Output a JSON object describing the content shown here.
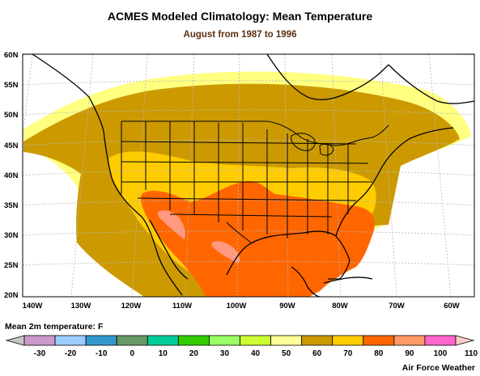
{
  "title": "ACMES Modeled Climatology: Mean Temperature",
  "subtitle": "August from 1987 to 1996",
  "colors": {
    "title": "#000000",
    "subtitle": "#5a2f0f",
    "grid": "#b8b8b8",
    "border": "#000000",
    "coast": "#000000"
  },
  "map": {
    "latitudes": [
      "60N",
      "55N",
      "50N",
      "45N",
      "40N",
      "35N",
      "30N",
      "25N",
      "20N"
    ],
    "longitudes": [
      "140W",
      "130W",
      "120W",
      "110W",
      "100W",
      "90W",
      "80W",
      "70W",
      "60W"
    ],
    "field_bands": [
      {
        "name": "50-60 F",
        "color": "#ffff80"
      },
      {
        "name": "60-70 F",
        "color": "#cc9a00"
      },
      {
        "name": "70-80 F",
        "color": "#ffcc00"
      },
      {
        "name": "80-90 F",
        "color": "#ff6600"
      },
      {
        "name": "90-100 F",
        "color": "#ff9a80"
      }
    ]
  },
  "legend": {
    "title": "Mean 2m temperature: F",
    "ticks": [
      "-30",
      "-20",
      "-10",
      "0",
      "10",
      "20",
      "30",
      "40",
      "50",
      "60",
      "70",
      "80",
      "90",
      "100",
      "110"
    ],
    "colors": [
      "#cc99cc",
      "#99ccff",
      "#3399cc",
      "#669966",
      "#00cc99",
      "#33cc00",
      "#99ff66",
      "#ccff33",
      "#ffff99",
      "#cc9900",
      "#ffcc00",
      "#ff6600",
      "#ff9966",
      "#ff66cc"
    ],
    "low_arrow_color": "#c8c8c8",
    "high_arrow_color": "#ffcccc"
  },
  "credit": "Air Force Weather"
}
